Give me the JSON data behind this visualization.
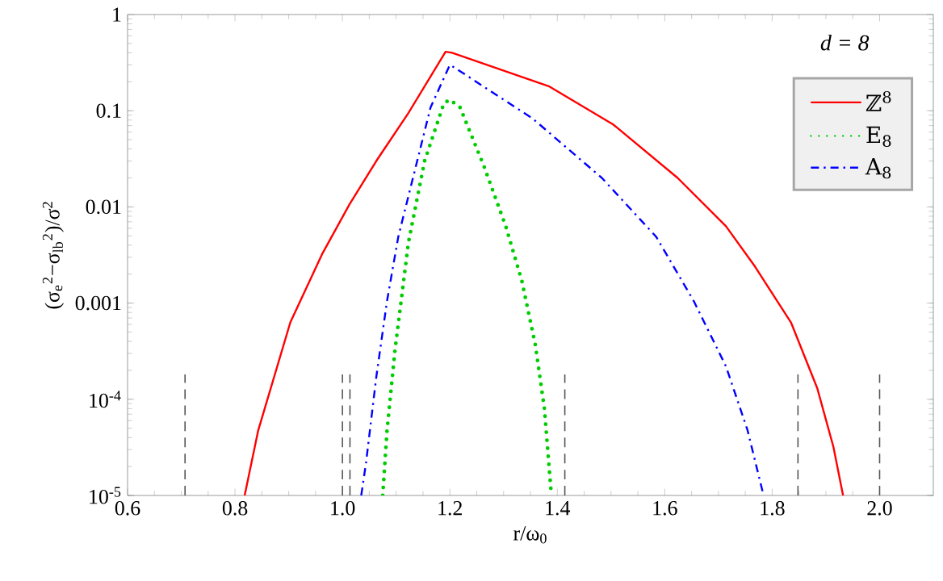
{
  "chart_data": {
    "type": "line",
    "xlabel": "r/ω$_{0}$",
    "ylabel": "(σ$_{e}$$^{2}$−σ$_{lb}$$^{2}$)/σ$^{2}$",
    "log": "y",
    "xlim": [
      0.6,
      2.1
    ],
    "ylim": [
      1e-05,
      1
    ],
    "xticks": [
      {
        "value": 0.6,
        "label": "0.6"
      },
      {
        "value": 0.8,
        "label": "0.8"
      },
      {
        "value": 1.0,
        "label": "1.0"
      },
      {
        "value": 1.2,
        "label": "1.2"
      },
      {
        "value": 1.4,
        "label": "1.4"
      },
      {
        "value": 1.6,
        "label": "1.6"
      },
      {
        "value": 1.8,
        "label": "1.8"
      },
      {
        "value": 2.0,
        "label": "2.0"
      }
    ],
    "yticks": [
      {
        "value": 1e-05,
        "label": "10$^{-5}$"
      },
      {
        "value": 0.0001,
        "label": "10$^{-4}$"
      },
      0.001,
      0.01,
      0.1,
      1
    ],
    "legend": "top right",
    "annotations": [
      "d = 8"
    ],
    "ref_lines": [
      {
        "axis": "x",
        "value": 0.707,
        "color": "#555555",
        "line_style": "dashed"
      },
      {
        "axis": "x",
        "value": 1.0,
        "color": "#555555",
        "line_style": "dashed"
      },
      {
        "axis": "x",
        "value": 1.014,
        "color": "#555555",
        "line_style": "dashed"
      },
      {
        "axis": "x",
        "value": 1.414,
        "color": "#555555",
        "line_style": "dashed"
      },
      {
        "axis": "x",
        "value": 1.848,
        "color": "#555555",
        "line_style": "dashed"
      },
      {
        "axis": "x",
        "value": 2.0,
        "color": "#555555",
        "line_style": "dashed"
      }
    ],
    "series": [
      {
        "name": "ℤ$^{8}$",
        "color": "#ff0000",
        "line_style": "solid",
        "x": [
          0.818,
          0.843,
          0.903,
          0.963,
          1.013,
          1.063,
          1.123,
          1.192,
          1.204,
          1.384,
          1.504,
          1.624,
          1.714,
          1.768,
          1.835,
          1.884,
          1.914,
          1.932
        ],
        "values": [
          1e-05,
          4.7e-05,
          0.00063,
          0.0033,
          0.0106,
          0.03,
          0.095,
          0.41,
          0.4,
          0.18,
          0.072,
          0.02,
          0.0063,
          0.0024,
          0.00063,
          0.00013,
          3.2e-05,
          1e-05
        ]
      },
      {
        "name": "E$_{8}$",
        "color": "#00cc00",
        "line_style": "dotted",
        "x": [
          1.075,
          1.083,
          1.098,
          1.123,
          1.153,
          1.189,
          1.2,
          1.219,
          1.264,
          1.304,
          1.334,
          1.359,
          1.376,
          1.389
        ],
        "values": [
          1e-05,
          4.7e-05,
          0.00033,
          0.0043,
          0.03,
          0.12,
          0.13,
          0.108,
          0.026,
          0.0063,
          0.0017,
          0.00037,
          8e-05,
          1e-05
        ]
      },
      {
        "name": "A$_{8}$",
        "color": "#0000ff",
        "line_style": "dashdot",
        "x": [
          1.035,
          1.044,
          1.063,
          1.083,
          1.104,
          1.134,
          1.164,
          1.2,
          1.209,
          1.354,
          1.483,
          1.584,
          1.654,
          1.714,
          1.754,
          1.784
        ],
        "values": [
          1e-05,
          2.2e-05,
          0.00017,
          0.00105,
          0.0049,
          0.023,
          0.108,
          0.3,
          0.28,
          0.083,
          0.02,
          0.0049,
          0.00105,
          0.00022,
          4.8e-05,
          1e-05
        ]
      }
    ]
  }
}
